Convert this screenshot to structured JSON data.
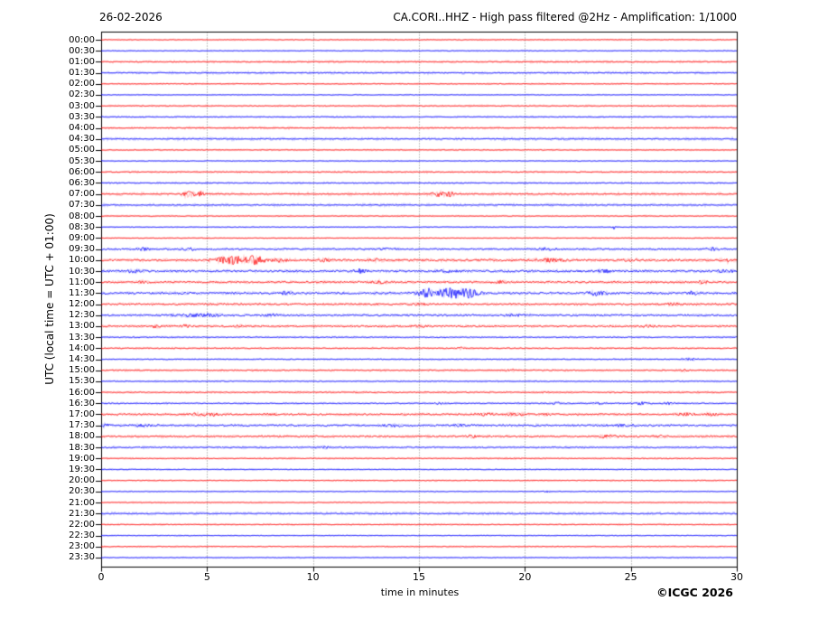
{
  "chart_data": {
    "type": "line",
    "subtype": "helicorder-seismogram",
    "date_label": "26-02-2026",
    "title": "CA.CORI..HHZ - High pass filtered @2Hz - Amplification: 1/1000",
    "ylabel": "UTC (local time = UTC + 01:00)",
    "xlabel": "time in minutes",
    "copyright": "©ICGC 2026",
    "xlim": [
      0,
      30
    ],
    "xticks": [
      0,
      5,
      10,
      15,
      20,
      25,
      30
    ],
    "grid_minutes": [
      5,
      10,
      15,
      20,
      25
    ],
    "row_interval_minutes": 30,
    "trace_colors": {
      "red": "#ff0000",
      "blue": "#0000ff"
    },
    "frame_color": "#000000",
    "grid_color": "#666666",
    "rows": [
      {
        "t": "00:00",
        "color": "red",
        "noise": 0.3,
        "halo": 0.7,
        "events": []
      },
      {
        "t": "00:30",
        "color": "blue",
        "noise": 0.3,
        "halo": 0.7,
        "events": []
      },
      {
        "t": "01:00",
        "color": "red",
        "noise": 0.35,
        "halo": 1.2,
        "events": []
      },
      {
        "t": "01:30",
        "color": "blue",
        "noise": 0.35,
        "halo": 1.4,
        "events": []
      },
      {
        "t": "02:00",
        "color": "red",
        "noise": 0.3,
        "halo": 0.8,
        "events": []
      },
      {
        "t": "02:30",
        "color": "blue",
        "noise": 0.3,
        "halo": 0.7,
        "events": []
      },
      {
        "t": "03:00",
        "color": "red",
        "noise": 0.3,
        "halo": 1.0,
        "events": []
      },
      {
        "t": "03:30",
        "color": "blue",
        "noise": 0.3,
        "halo": 1.0,
        "events": []
      },
      {
        "t": "04:00",
        "color": "red",
        "noise": 0.35,
        "halo": 1.2,
        "events": []
      },
      {
        "t": "04:30",
        "color": "blue",
        "noise": 0.35,
        "halo": 1.5,
        "events": []
      },
      {
        "t": "05:00",
        "color": "red",
        "noise": 0.3,
        "halo": 0.8,
        "events": []
      },
      {
        "t": "05:30",
        "color": "blue",
        "noise": 0.3,
        "halo": 0.7,
        "events": []
      },
      {
        "t": "06:00",
        "color": "red",
        "noise": 0.35,
        "halo": 1.1,
        "events": []
      },
      {
        "t": "06:30",
        "color": "blue",
        "noise": 0.35,
        "halo": 1.1,
        "events": []
      },
      {
        "t": "07:00",
        "color": "red",
        "noise": 0.4,
        "halo": 1.6,
        "events": [
          {
            "min": 4.15,
            "width": 0.3,
            "amp": 3.2
          },
          {
            "min": 4.65,
            "width": 0.2,
            "amp": 2.6
          },
          {
            "min": 15.9,
            "width": 0.3,
            "amp": 3.2
          },
          {
            "min": 16.45,
            "width": 0.22,
            "amp": 2.8
          }
        ]
      },
      {
        "t": "07:30",
        "color": "blue",
        "noise": 0.35,
        "halo": 1.5,
        "events": []
      },
      {
        "t": "08:00",
        "color": "red",
        "noise": 0.3,
        "halo": 0.8,
        "events": []
      },
      {
        "t": "08:30",
        "color": "blue",
        "noise": 0.3,
        "halo": 0.7,
        "events": [
          {
            "min": 24.2,
            "width": 0.08,
            "amp": 2.2
          }
        ]
      },
      {
        "t": "09:00",
        "color": "red",
        "noise": 0.3,
        "halo": 0.7,
        "events": []
      },
      {
        "t": "09:30",
        "color": "blue",
        "noise": 0.8,
        "halo": 1.2,
        "events": [
          {
            "min": 2.0,
            "width": 0.35,
            "amp": 1.4
          },
          {
            "min": 4.1,
            "width": 0.3,
            "amp": 1.6
          },
          {
            "min": 13.5,
            "width": 0.4,
            "amp": 0.9
          },
          {
            "min": 21.0,
            "width": 0.5,
            "amp": 1.1
          },
          {
            "min": 28.8,
            "width": 0.35,
            "amp": 1.4
          }
        ]
      },
      {
        "t": "10:00",
        "color": "red",
        "noise": 1.0,
        "halo": 1.6,
        "events": [
          {
            "min": 6.2,
            "width": 0.8,
            "amp": 4.5
          },
          {
            "min": 7.3,
            "width": 0.5,
            "amp": 3.8
          },
          {
            "min": 8.4,
            "width": 0.3,
            "amp": 2.2
          },
          {
            "min": 10.5,
            "width": 0.4,
            "amp": 1.3
          },
          {
            "min": 13.0,
            "width": 0.3,
            "amp": 1.3
          },
          {
            "min": 21.3,
            "width": 0.7,
            "amp": 1.4
          },
          {
            "min": 25.0,
            "width": 0.4,
            "amp": 1.1
          },
          {
            "min": 29.6,
            "width": 0.07,
            "amp": 4.0
          }
        ]
      },
      {
        "t": "10:30",
        "color": "blue",
        "noise": 1.1,
        "halo": 1.5,
        "events": [
          {
            "min": 1.5,
            "width": 0.4,
            "amp": 1.1
          },
          {
            "min": 12.2,
            "width": 0.3,
            "amp": 1.9
          },
          {
            "min": 16.3,
            "width": 0.4,
            "amp": 1.4
          },
          {
            "min": 23.8,
            "width": 0.3,
            "amp": 1.3
          },
          {
            "min": 29.5,
            "width": 0.3,
            "amp": 1.6
          }
        ]
      },
      {
        "t": "11:00",
        "color": "red",
        "noise": 0.9,
        "halo": 1.4,
        "events": [
          {
            "min": 2.0,
            "width": 0.3,
            "amp": 1.3
          },
          {
            "min": 13.2,
            "width": 0.4,
            "amp": 1.1
          },
          {
            "min": 18.8,
            "width": 0.4,
            "amp": 1.1
          },
          {
            "min": 28.4,
            "width": 0.25,
            "amp": 1.9
          }
        ]
      },
      {
        "t": "11:30",
        "color": "blue",
        "noise": 1.1,
        "halo": 1.5,
        "events": [
          {
            "min": 8.8,
            "width": 0.2,
            "amp": 3.2
          },
          {
            "min": 15.5,
            "width": 0.6,
            "amp": 4.5
          },
          {
            "min": 16.6,
            "width": 0.6,
            "amp": 4.8
          },
          {
            "min": 17.4,
            "width": 0.4,
            "amp": 3.8
          },
          {
            "min": 23.4,
            "width": 0.4,
            "amp": 2.1
          },
          {
            "min": 27.9,
            "width": 0.3,
            "amp": 1.4
          }
        ]
      },
      {
        "t": "12:00",
        "color": "red",
        "noise": 0.9,
        "halo": 1.3,
        "events": [
          {
            "min": 15.0,
            "width": 0.4,
            "amp": 1.1
          },
          {
            "min": 27.0,
            "width": 0.5,
            "amp": 1.1
          }
        ]
      },
      {
        "t": "12:30",
        "color": "blue",
        "noise": 0.9,
        "halo": 1.3,
        "events": [
          {
            "min": 4.0,
            "width": 0.8,
            "amp": 1.4
          },
          {
            "min": 5.2,
            "width": 0.4,
            "amp": 1.6
          },
          {
            "min": 8.0,
            "width": 0.3,
            "amp": 1.4
          },
          {
            "min": 19.5,
            "width": 0.4,
            "amp": 0.9
          }
        ]
      },
      {
        "t": "13:00",
        "color": "red",
        "noise": 0.8,
        "halo": 1.3,
        "events": [
          {
            "min": 2.6,
            "width": 0.25,
            "amp": 1.6
          },
          {
            "min": 4.0,
            "width": 0.2,
            "amp": 1.4
          },
          {
            "min": 6.5,
            "width": 0.2,
            "amp": 1.3
          },
          {
            "min": 15.0,
            "width": 0.3,
            "amp": 1.1
          },
          {
            "min": 25.8,
            "width": 0.3,
            "amp": 1.4
          }
        ]
      },
      {
        "t": "13:30",
        "color": "blue",
        "noise": 0.5,
        "halo": 1.0,
        "events": []
      },
      {
        "t": "14:00",
        "color": "red",
        "noise": 0.5,
        "halo": 1.0,
        "events": [
          {
            "min": 17.0,
            "width": 0.15,
            "amp": 1.4
          }
        ]
      },
      {
        "t": "14:30",
        "color": "blue",
        "noise": 0.45,
        "halo": 0.9,
        "events": [
          {
            "min": 27.8,
            "width": 0.3,
            "amp": 1.4
          }
        ]
      },
      {
        "t": "15:00",
        "color": "red",
        "noise": 0.5,
        "halo": 1.1,
        "events": [
          {
            "min": 19.3,
            "width": 0.2,
            "amp": 1.1
          },
          {
            "min": 27.5,
            "width": 0.2,
            "amp": 1.1
          }
        ]
      },
      {
        "t": "15:30",
        "color": "blue",
        "noise": 0.4,
        "halo": 0.9,
        "events": []
      },
      {
        "t": "16:00",
        "color": "red",
        "noise": 0.45,
        "halo": 1.1,
        "events": []
      },
      {
        "t": "16:30",
        "color": "blue",
        "noise": 0.5,
        "halo": 1.0,
        "events": [
          {
            "min": 16.0,
            "width": 0.25,
            "amp": 1.1
          },
          {
            "min": 21.5,
            "width": 0.3,
            "amp": 1.1
          },
          {
            "min": 23.5,
            "width": 0.25,
            "amp": 1.1
          },
          {
            "min": 25.5,
            "width": 0.4,
            "amp": 1.4
          },
          {
            "min": 26.8,
            "width": 0.3,
            "amp": 1.1
          }
        ]
      },
      {
        "t": "17:00",
        "color": "red",
        "noise": 0.8,
        "halo": 1.3,
        "events": [
          {
            "min": 4.6,
            "width": 0.3,
            "amp": 1.9
          },
          {
            "min": 5.3,
            "width": 0.25,
            "amp": 1.6
          },
          {
            "min": 8.0,
            "width": 0.3,
            "amp": 0.9
          },
          {
            "min": 18.1,
            "width": 0.5,
            "amp": 1.4
          },
          {
            "min": 19.5,
            "width": 0.4,
            "amp": 1.9
          },
          {
            "min": 21.0,
            "width": 0.3,
            "amp": 1.1
          },
          {
            "min": 27.6,
            "width": 0.4,
            "amp": 1.3
          },
          {
            "min": 28.8,
            "width": 0.3,
            "amp": 1.3
          }
        ]
      },
      {
        "t": "17:30",
        "color": "blue",
        "noise": 0.9,
        "halo": 1.3,
        "events": [
          {
            "min": 0.2,
            "width": 0.2,
            "amp": 1.9
          },
          {
            "min": 2.0,
            "width": 0.4,
            "amp": 1.1
          },
          {
            "min": 13.8,
            "width": 0.4,
            "amp": 1.4
          },
          {
            "min": 17.0,
            "width": 0.3,
            "amp": 1.1
          },
          {
            "min": 24.8,
            "width": 0.5,
            "amp": 1.3
          }
        ]
      },
      {
        "t": "18:00",
        "color": "red",
        "noise": 0.8,
        "halo": 1.3,
        "events": [
          {
            "min": 17.5,
            "width": 0.3,
            "amp": 1.1
          },
          {
            "min": 24.0,
            "width": 0.5,
            "amp": 1.3
          },
          {
            "min": 26.5,
            "width": 0.3,
            "amp": 1.1
          }
        ]
      },
      {
        "t": "18:30",
        "color": "blue",
        "noise": 0.55,
        "halo": 1.2,
        "events": [
          {
            "min": 10.5,
            "width": 0.3,
            "amp": 0.9
          }
        ]
      },
      {
        "t": "19:00",
        "color": "red",
        "noise": 0.35,
        "halo": 0.9,
        "events": []
      },
      {
        "t": "19:30",
        "color": "blue",
        "noise": 0.35,
        "halo": 0.8,
        "events": []
      },
      {
        "t": "20:00",
        "color": "red",
        "noise": 0.3,
        "halo": 0.8,
        "events": []
      },
      {
        "t": "20:30",
        "color": "blue",
        "noise": 0.3,
        "halo": 0.7,
        "events": [
          {
            "min": 21.0,
            "width": 0.1,
            "amp": 1.3
          }
        ]
      },
      {
        "t": "21:00",
        "color": "red",
        "noise": 0.3,
        "halo": 0.8,
        "events": []
      },
      {
        "t": "21:30",
        "color": "blue",
        "noise": 0.35,
        "halo": 1.5,
        "events": []
      },
      {
        "t": "22:00",
        "color": "red",
        "noise": 0.3,
        "halo": 0.9,
        "events": []
      },
      {
        "t": "22:30",
        "color": "blue",
        "noise": 0.3,
        "halo": 0.7,
        "events": []
      },
      {
        "t": "23:00",
        "color": "red",
        "noise": 0.3,
        "halo": 0.8,
        "events": []
      },
      {
        "t": "23:30",
        "color": "blue",
        "noise": 0.3,
        "halo": 0.7,
        "events": []
      }
    ]
  }
}
